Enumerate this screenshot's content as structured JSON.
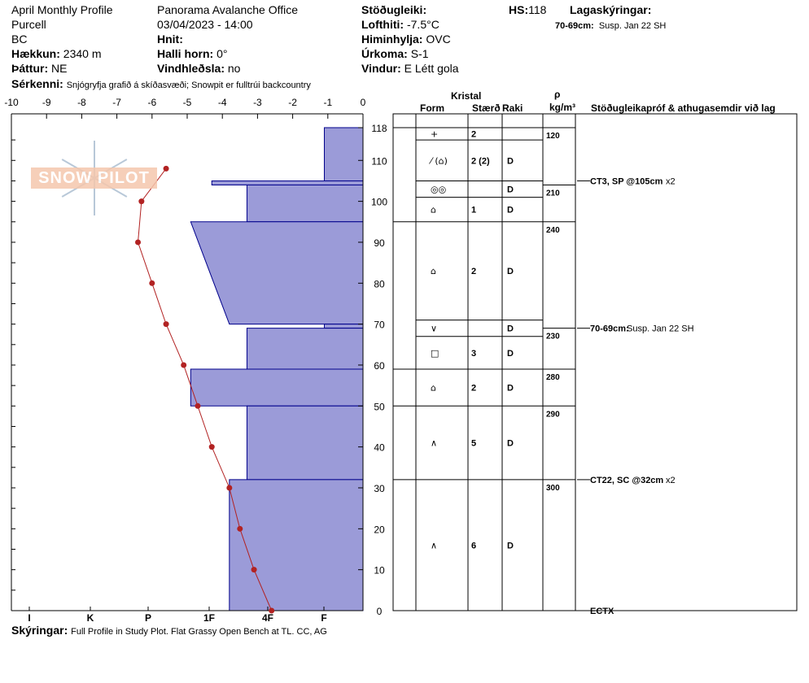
{
  "header": {
    "profile_name": "April Monthly Profile",
    "range": "Purcell",
    "province": "BC",
    "elevation_label": "Hækkun:",
    "elevation_value": "2340 m",
    "aspect_label": "Þáttur:",
    "aspect_value": "NE",
    "office": "Panorama Avalanche Office",
    "datetime": "03/04/2023 - 14:00",
    "coords_label": "Hnit:",
    "slope_label": "Halli horn:",
    "slope_value": "0°",
    "wind_load_label": "Vindhleðsla:",
    "wind_load_value": "no",
    "stability_label": "Stöðugleiki:",
    "air_temp_label": "Lofthiti:",
    "air_temp_value": "-7.5°C",
    "sky_label": "Himinhylja:",
    "sky_value": "OVC",
    "precip_label": "Úrkoma:",
    "precip_value": "S-1",
    "wind_label": "Vindur:",
    "wind_value": "E Létt gola",
    "hs_label": "HS:",
    "hs_value": "118",
    "layer_notes_label": "Lagaskýringar:",
    "layer_note_1_label": "70-69cm:",
    "layer_note_1_text": "Susp. Jan 22 SH",
    "features_label": "Sérkenni:",
    "features_value": "Snjógryfja grafið á skíðasvæði; Snowpit er fulltrúi backcountry",
    "notes_label": "Skýringar:",
    "notes_value": "Full Profile in Study Plot. Flat Grassy Open Bench at TL. CC, AG"
  },
  "logo_text": "SNOW PILOT",
  "table_headers": {
    "kristal": "Kristal",
    "form": "Form",
    "size": "Stærð",
    "moisture": "Raki",
    "rho": "ρ",
    "density_unit": "kg/m³",
    "tests": "Stöðugleikapróf & athugasemdir við lag"
  },
  "colors": {
    "hardness_fill": "#9b9bd8",
    "hardness_stroke": "#00008b",
    "temp_line": "#b22222"
  },
  "chart_data": {
    "type": "line",
    "title": "",
    "temp_axis": {
      "ticks": [
        "-10",
        "-9",
        "-8",
        "-7",
        "-6",
        "-5",
        "-4",
        "-3",
        "-2",
        "-1",
        "0"
      ],
      "range": [
        -10,
        0
      ]
    },
    "height_axis": {
      "ticks": [
        "118",
        "110",
        "100",
        "90",
        "80",
        "70",
        "60",
        "50",
        "40",
        "30",
        "20",
        "10",
        "0"
      ],
      "range": [
        0,
        118
      ]
    },
    "hardness_axis": {
      "ticks": [
        "I",
        "K",
        "P",
        "1F",
        "4F",
        "F"
      ]
    },
    "temperature_profile": [
      {
        "height": 108,
        "temp": -5.6
      },
      {
        "height": 100,
        "temp": -6.3
      },
      {
        "height": 90,
        "temp": -6.4
      },
      {
        "height": 80,
        "temp": -6.0
      },
      {
        "height": 70,
        "temp": -5.6
      },
      {
        "height": 60,
        "temp": -5.1
      },
      {
        "height": 50,
        "temp": -4.7
      },
      {
        "height": 40,
        "temp": -4.3
      },
      {
        "height": 30,
        "temp": -3.8
      },
      {
        "height": 20,
        "temp": -3.5
      },
      {
        "height": 10,
        "temp": -3.1
      },
      {
        "height": 0,
        "temp": -2.6
      }
    ],
    "hardness_layers": [
      {
        "top": 118,
        "bottom": 105,
        "hardness_top": -1.1,
        "hardness_bottom": -1.1
      },
      {
        "top": 105,
        "bottom": 104,
        "hardness_top": -4.3,
        "hardness_bottom": -4.3
      },
      {
        "top": 104,
        "bottom": 95,
        "hardness_top": -3.3,
        "hardness_bottom": -3.3
      },
      {
        "top": 95,
        "bottom": 70,
        "hardness_top": -4.9,
        "hardness_bottom": -3.8
      },
      {
        "top": 70,
        "bottom": 69,
        "hardness_top": -1.1,
        "hardness_bottom": -1.1
      },
      {
        "top": 69,
        "bottom": 59,
        "hardness_top": -3.3,
        "hardness_bottom": -3.3
      },
      {
        "top": 59,
        "bottom": 50,
        "hardness_top": -4.9,
        "hardness_bottom": -4.9
      },
      {
        "top": 50,
        "bottom": 32,
        "hardness_top": -3.3,
        "hardness_bottom": -3.3
      },
      {
        "top": 32,
        "bottom": 0,
        "hardness_top": -3.8,
        "hardness_bottom": -3.8
      }
    ]
  },
  "layers": [
    {
      "top": 118,
      "bottom": 115,
      "form": "+",
      "size": "2",
      "moisture": ""
    },
    {
      "top": 115,
      "bottom": 105,
      "form": "⁄ (⌂)",
      "size": "2 (2)",
      "moisture": "D"
    },
    {
      "top": 105,
      "bottom": 101,
      "form": "◎◎",
      "size": "",
      "moisture": "D"
    },
    {
      "top": 101,
      "bottom": 95,
      "form": "⌂",
      "size": "1",
      "moisture": "D"
    },
    {
      "top": 95,
      "bottom": 71,
      "form": "⌂",
      "size": "2",
      "moisture": "D"
    },
    {
      "top": 71,
      "bottom": 67,
      "form": "∨",
      "size": "",
      "moisture": "D"
    },
    {
      "top": 67,
      "bottom": 59,
      "form": "□",
      "size": "3",
      "moisture": "D"
    },
    {
      "top": 59,
      "bottom": 50,
      "form": "⌂",
      "size": "2",
      "moisture": "D"
    },
    {
      "top": 50,
      "bottom": 32,
      "form": "∧",
      "size": "5",
      "moisture": "D"
    },
    {
      "top": 32,
      "bottom": 0,
      "form": "∧",
      "size": "6",
      "moisture": "D"
    }
  ],
  "densities": [
    {
      "top": 118,
      "bottom": 104,
      "value": "120"
    },
    {
      "top": 104,
      "bottom": 95,
      "value": "210"
    },
    {
      "top": 95,
      "bottom": 69,
      "value": "240"
    },
    {
      "top": 69,
      "bottom": 59,
      "value": "230"
    },
    {
      "top": 59,
      "bottom": 50,
      "value": "280"
    },
    {
      "top": 50,
      "bottom": 32,
      "value": "290"
    },
    {
      "top": 32,
      "bottom": 0,
      "value": "300"
    }
  ],
  "tests": [
    {
      "height": 105,
      "label": "CT3, SP @105cm",
      "count": "x2"
    },
    {
      "height": 69,
      "label": "70-69cm:",
      "text": "Susp. Jan 22 SH"
    },
    {
      "height": 32,
      "label": "CT22, SC @32cm",
      "count": "x2"
    },
    {
      "height": 0,
      "label": "ECTX"
    }
  ]
}
